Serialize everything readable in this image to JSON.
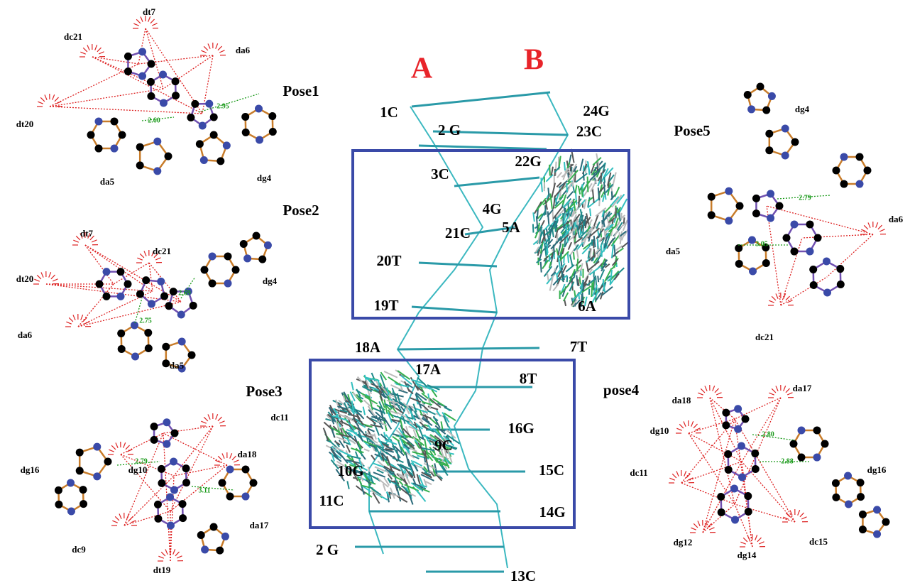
{
  "strand_labels": [
    "A",
    "B"
  ],
  "helix": {
    "labels": [
      "1C",
      "2 G",
      "3C",
      "4G",
      "5A",
      "6A",
      "7T",
      "8T",
      "9C",
      "10G",
      "11C",
      "2 G",
      "13C",
      "14G",
      "15C",
      "16G",
      "17A",
      "18A",
      "19T",
      "20T",
      "21C",
      "22G",
      "23C",
      "24G"
    ]
  },
  "poses": [
    {
      "title": "Pose1",
      "residues": [
        "dt7",
        "dc21",
        "da6",
        "dt20",
        "da5",
        "dg4"
      ],
      "distances": [
        "2.95",
        "2.60"
      ]
    },
    {
      "title": "Pose2",
      "residues": [
        "dt7",
        "dc21",
        "dt20",
        "dg4",
        "da6",
        "da5"
      ],
      "distances": [
        "2.69",
        "2.75"
      ]
    },
    {
      "title": "Pose3",
      "residues": [
        "dc11",
        "da18",
        "dg16",
        "dg10",
        "dc9",
        "dt19",
        "da17"
      ],
      "distances": [
        "2.79",
        "3.11"
      ]
    },
    {
      "title": "Pose5",
      "residues": [
        "dg4",
        "da5",
        "da6",
        "dc21"
      ],
      "distances": [
        "2.79",
        "3.05"
      ]
    },
    {
      "title": "pose4",
      "residues": [
        "da18",
        "da17",
        "dg10",
        "dc11",
        "dg16",
        "dg12",
        "dg14",
        "dc15"
      ],
      "distances": [
        "2.80",
        "2.88"
      ]
    }
  ]
}
